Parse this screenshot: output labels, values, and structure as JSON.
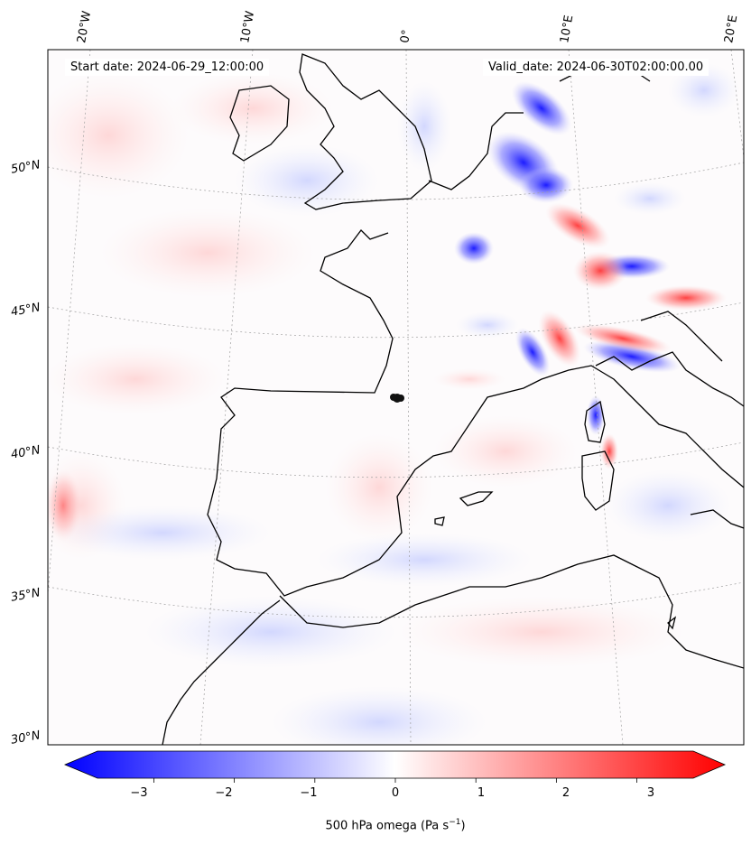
{
  "map": {
    "start_date": "Start date: 2024-06-29_12:00:00",
    "valid_date": "Valid_date: 2024-06-30T02:00:00.00",
    "lon_labels": [
      "20°W",
      "10°W",
      "0°",
      "10°E",
      "20°E"
    ],
    "lat_labels": [
      "50°N",
      "45°N",
      "40°N",
      "35°N",
      "30°N"
    ],
    "variable": "500 hPa omega",
    "units_base": "Pa s",
    "units_exp": "−1",
    "colormap": "bwr",
    "color_low": "#0000ff",
    "color_mid": "#ffffff",
    "color_high": "#ff0000"
  },
  "colorbar": {
    "ticks": [
      "−3",
      "−2",
      "−1",
      "0",
      "1",
      "2",
      "3"
    ],
    "tick_values": [
      -3,
      -2,
      -1,
      0,
      1,
      2,
      3
    ],
    "vmin": -3.7,
    "vmax": 3.7
  }
}
